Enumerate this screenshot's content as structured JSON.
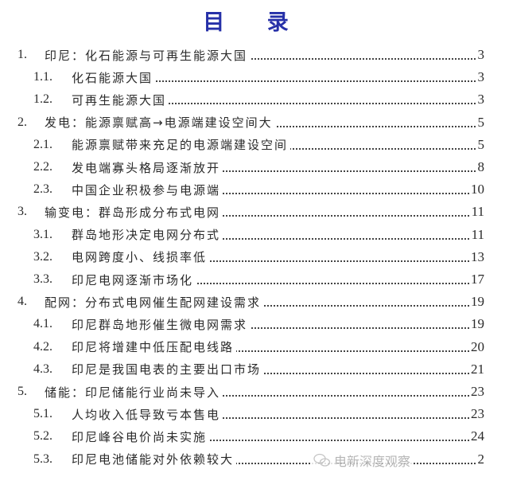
{
  "title": "目 录",
  "entries": [
    {
      "level": 1,
      "number": "1.",
      "label": "印尼：化石能源与可再生能源大国",
      "page": "3"
    },
    {
      "level": 2,
      "number": "1.1.",
      "label": "化石能源大国",
      "page": "3"
    },
    {
      "level": 2,
      "number": "1.2.",
      "label": "可再生能源大国",
      "page": "3"
    },
    {
      "level": 1,
      "number": "2.",
      "label": "发电：能源禀赋高→电源端建设空间大",
      "page": "5"
    },
    {
      "level": 2,
      "number": "2.1.",
      "label": "能源禀赋带来充足的电源端建设空间",
      "page": "5"
    },
    {
      "level": 2,
      "number": "2.2.",
      "label": "发电端寡头格局逐渐放开",
      "page": "8"
    },
    {
      "level": 2,
      "number": "2.3.",
      "label": "中国企业积极参与电源端",
      "page": "10"
    },
    {
      "level": 1,
      "number": "3.",
      "label": "输变电：群岛形成分布式电网",
      "page": "11"
    },
    {
      "level": 2,
      "number": "3.1.",
      "label": "群岛地形决定电网分布式",
      "page": "11"
    },
    {
      "level": 2,
      "number": "3.2.",
      "label": "电网跨度小、线损率低",
      "page": "13"
    },
    {
      "level": 2,
      "number": "3.3.",
      "label": "印尼电网逐渐市场化",
      "page": "17"
    },
    {
      "level": 1,
      "number": "4.",
      "label": "配网：分布式电网催生配网建设需求",
      "page": "19"
    },
    {
      "level": 2,
      "number": "4.1.",
      "label": "印尼群岛地形催生微电网需求",
      "page": "19"
    },
    {
      "level": 2,
      "number": "4.2.",
      "label": "印尼将增建中低压配电线路",
      "page": "20"
    },
    {
      "level": 2,
      "number": "4.3.",
      "label": "印尼是我国电表的主要出口市场",
      "page": "21"
    },
    {
      "level": 1,
      "number": "5.",
      "label": "储能：印尼储能行业尚未导入",
      "page": "23"
    },
    {
      "level": 2,
      "number": "5.1.",
      "label": "人均收入低导致亏本售电",
      "page": "23"
    },
    {
      "level": 2,
      "number": "5.2.",
      "label": "印尼峰谷电价尚未实施",
      "page": "24"
    },
    {
      "level": 2,
      "number": "5.3.",
      "label": "印尼电池储能对外依赖较大",
      "page": "2"
    }
  ],
  "watermark": {
    "icon": "wechat-icon",
    "text": "电新深度观察"
  },
  "colors": {
    "title": "#2630a8",
    "text": "#2a2a2a"
  }
}
